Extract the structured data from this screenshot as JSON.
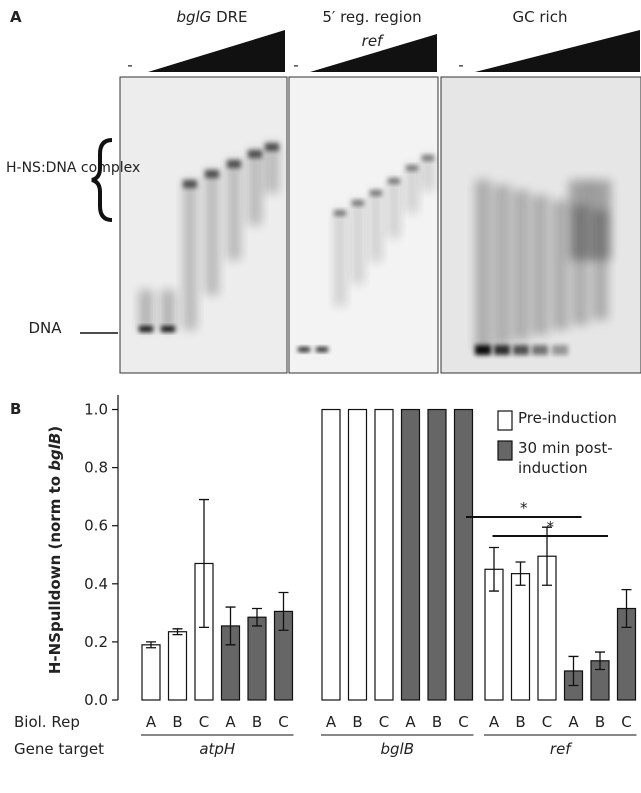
{
  "panel_a": {
    "label": "A",
    "lanes": [
      {
        "title_italic": "bglG",
        "title": " DRE",
        "control": "-"
      },
      {
        "title": "5′ reg. region",
        "subtitle": "ref",
        "control": "-"
      },
      {
        "title": "GC rich",
        "control": "-"
      }
    ],
    "complex_label": "H-NS:DNA complex",
    "dna_label": "DNA"
  },
  "chart_data": {
    "type": "bar",
    "panel_label": "B",
    "y_label": {
      "text": "H-NSpulldown (norm to ",
      "italic": "bglB",
      "end": ")"
    },
    "categories": [
      "A",
      "B",
      "C",
      "A",
      "B",
      "C",
      "A",
      "B",
      "C",
      "A",
      "B",
      "C",
      "A",
      "B",
      "C",
      "A",
      "B",
      "C"
    ],
    "row_label": "Biol. Rep",
    "group_row_label": "Gene target",
    "groups": [
      "atpH",
      "bglB",
      "ref"
    ],
    "series": [
      {
        "name": "Pre-induction",
        "color": "#ffffff",
        "values": [
          0.19,
          0.235,
          0.47,
          null,
          null,
          null,
          1,
          1,
          1,
          null,
          null,
          null,
          0.45,
          0.435,
          0.495,
          null,
          null,
          null
        ],
        "errors": [
          0.01,
          0.01,
          0.22,
          null,
          null,
          null,
          null,
          null,
          null,
          null,
          null,
          null,
          0.075,
          0.04,
          0.1,
          null,
          null,
          null
        ]
      },
      {
        "name": "30 min post-induction",
        "color": "#666666",
        "values": [
          null,
          null,
          null,
          0.255,
          0.285,
          0.305,
          null,
          null,
          null,
          1,
          1,
          1,
          null,
          null,
          null,
          0.1,
          0.135,
          0.315
        ],
        "errors": [
          null,
          null,
          null,
          0.065,
          0.03,
          0.065,
          null,
          null,
          null,
          null,
          null,
          null,
          null,
          null,
          null,
          0.05,
          0.03,
          0.065
        ]
      }
    ],
    "ylim": [
      0,
      1.05
    ],
    "yticks": [
      {
        "value": 0,
        "label": "0.0"
      },
      0.2,
      0.4,
      0.6,
      0.8,
      {
        "value": 1,
        "label": "1.0"
      }
    ],
    "annotations": [
      "*",
      "*"
    ]
  }
}
